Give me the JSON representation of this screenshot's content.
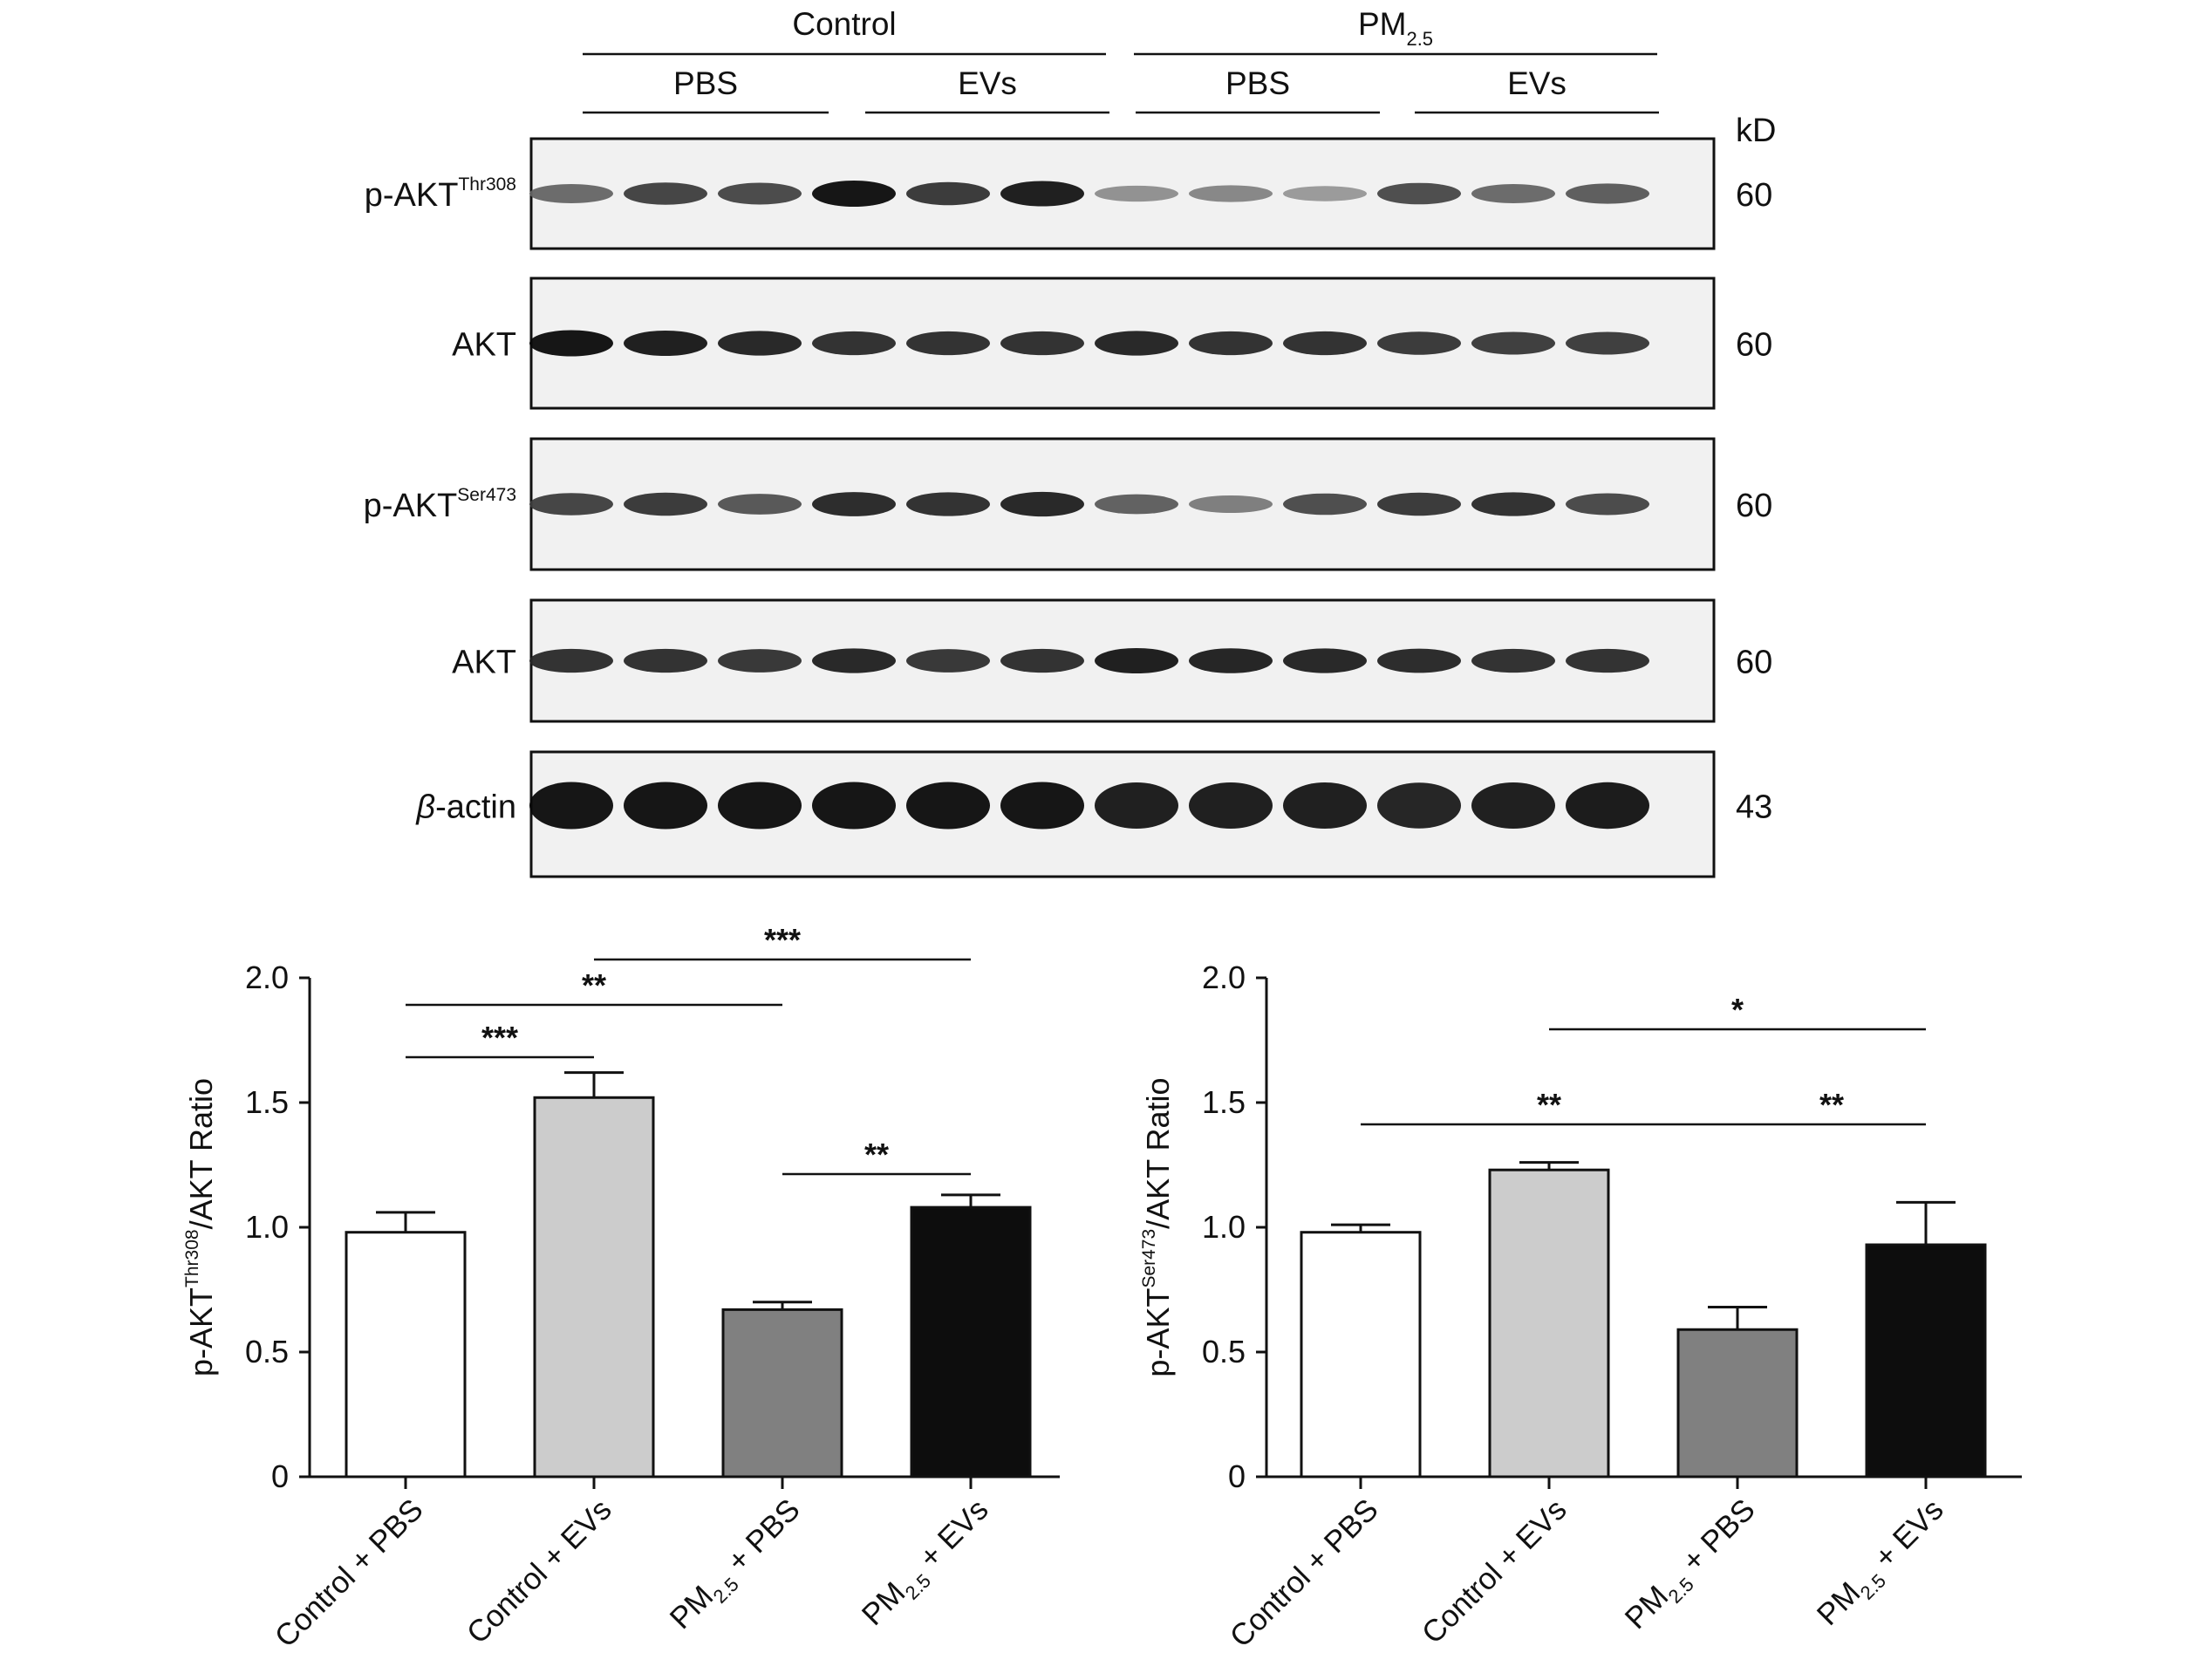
{
  "blot": {
    "groups": [
      {
        "label": "Control",
        "sub": ""
      },
      {
        "label": "PM",
        "sub": "2.5"
      }
    ],
    "treatments": [
      "PBS",
      "EVs",
      "PBS",
      "EVs"
    ],
    "kd_label": "kD",
    "rows": [
      {
        "name": "p-AKT",
        "sup": "Thr308",
        "kd": "60",
        "intensity": [
          0.55,
          0.75,
          0.72,
          1.0,
          0.8,
          0.95,
          0.35,
          0.4,
          0.3,
          0.7,
          0.55,
          0.62
        ]
      },
      {
        "name": "AKT",
        "sup": "",
        "kd": "60",
        "intensity": [
          1.0,
          0.95,
          0.9,
          0.85,
          0.85,
          0.85,
          0.9,
          0.85,
          0.85,
          0.8,
          0.78,
          0.78
        ]
      },
      {
        "name": "p-AKT",
        "sup": "Ser473",
        "kd": "60",
        "intensity": [
          0.75,
          0.8,
          0.65,
          0.88,
          0.85,
          0.9,
          0.6,
          0.45,
          0.7,
          0.8,
          0.85,
          0.72
        ]
      },
      {
        "name": "AKT",
        "sup": "",
        "kd": "60",
        "intensity": [
          0.85,
          0.85,
          0.82,
          0.9,
          0.82,
          0.85,
          0.95,
          0.92,
          0.9,
          0.88,
          0.85,
          0.85
        ]
      },
      {
        "name": "β-actin",
        "sup": "",
        "kd": "43",
        "intensity": [
          1.0,
          1.0,
          1.0,
          1.0,
          1.0,
          1.0,
          0.95,
          0.95,
          0.95,
          0.92,
          0.95,
          0.97
        ]
      }
    ]
  },
  "chart_data": [
    {
      "type": "bar",
      "ylabel": {
        "prefix": "p-AKT",
        "sup": "Thr308",
        "suffix": "/AKT Ratio"
      },
      "ylim": [
        0,
        2.0
      ],
      "yticks": [
        "0",
        "0.5",
        "1.0",
        "1.5",
        "2.0"
      ],
      "categories": [
        "Control + PBS",
        "Control + EVs",
        "PM2.5 + PBS",
        "PM2.5 + EVs"
      ],
      "values": [
        0.98,
        1.52,
        0.67,
        1.08
      ],
      "errors": [
        0.08,
        0.1,
        0.03,
        0.05
      ],
      "colors": [
        "#ffffff",
        "#cccccc",
        "#808080",
        "#0d0d0d"
      ],
      "significance": [
        {
          "from": 0,
          "to": 1,
          "label": "***"
        },
        {
          "from": 0,
          "to": 2,
          "label": "**"
        },
        {
          "from": 1,
          "to": 3,
          "label": "***"
        },
        {
          "from": 2,
          "to": 3,
          "label": "**"
        }
      ]
    },
    {
      "type": "bar",
      "ylabel": {
        "prefix": "p-AKT",
        "sup": "Ser473",
        "suffix": "/AKT Ratio"
      },
      "ylim": [
        0,
        2.0
      ],
      "yticks": [
        "0",
        "0.5",
        "1.0",
        "1.5",
        "2.0"
      ],
      "categories": [
        "Control + PBS",
        "Control + EVs",
        "PM2.5 + PBS",
        "PM2.5 + EVs"
      ],
      "values": [
        0.98,
        1.23,
        0.59,
        0.93
      ],
      "errors": [
        0.03,
        0.03,
        0.09,
        0.17
      ],
      "colors": [
        "#ffffff",
        "#cccccc",
        "#808080",
        "#0d0d0d"
      ],
      "significance": [
        {
          "from": 1,
          "to": 3,
          "label": "*"
        },
        {
          "from": 0,
          "to": 2,
          "label": "**"
        },
        {
          "from": 2,
          "to": 3,
          "label": "**"
        }
      ]
    }
  ]
}
